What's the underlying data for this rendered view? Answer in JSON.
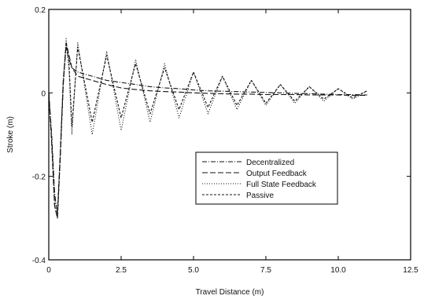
{
  "chart_data": {
    "type": "line",
    "title": "",
    "xlabel": "Travel Distance (m)",
    "ylabel": "Stroke (m)",
    "xlim": [
      0,
      12.5
    ],
    "ylim": [
      -0.4,
      0.2
    ],
    "xticks": [
      0,
      2.5,
      5.0,
      7.5,
      10.0,
      12.5
    ],
    "xtick_labels": [
      "0",
      "2.5",
      "5.0",
      "7.5",
      "10.0",
      "12.5"
    ],
    "yticks": [
      -0.4,
      -0.2,
      0,
      0.2
    ],
    "ytick_labels": [
      "-0.4",
      "-0.2",
      "0",
      "0.2"
    ],
    "grid": false,
    "legend_position": "lower-right",
    "series": [
      {
        "name": "Decentralized",
        "dash": "6,2,1,2",
        "x": [
          0,
          0.1,
          0.2,
          0.3,
          0.4,
          0.5,
          0.6,
          0.7,
          0.8,
          1.0,
          1.5,
          2.0,
          2.5,
          3.0,
          3.5,
          4.0,
          4.5,
          5.0,
          5.5,
          6.0,
          6.5,
          7.0,
          7.5,
          8.0,
          8.5,
          9.0,
          9.5,
          10.0,
          10.5,
          11.0
        ],
        "y": [
          0,
          -0.1,
          -0.24,
          -0.29,
          -0.14,
          0.03,
          0.11,
          0.08,
          0.06,
          0.05,
          0.04,
          0.03,
          0.025,
          0.02,
          0.015,
          0.012,
          0.01,
          0.007,
          0.005,
          0.004,
          0.003,
          0.002,
          0.001,
          0.0,
          -0.001,
          -0.002,
          -0.003,
          -0.004,
          -0.004,
          -0.005
        ]
      },
      {
        "name": "Output Feedback",
        "dash": "7,3",
        "x": [
          0,
          0.1,
          0.2,
          0.3,
          0.4,
          0.5,
          0.6,
          0.7,
          0.8,
          1.0,
          1.5,
          2.0,
          2.5,
          3.0,
          3.5,
          4.0,
          4.5,
          5.0,
          5.5,
          6.0,
          6.5,
          7.0,
          7.5,
          8.0,
          8.5,
          9.0,
          9.5,
          10.0,
          10.5,
          11.0
        ],
        "y": [
          0,
          -0.12,
          -0.27,
          -0.3,
          -0.15,
          0.02,
          0.12,
          0.09,
          0.06,
          0.04,
          0.03,
          0.02,
          0.012,
          0.008,
          0.005,
          0.003,
          0.002,
          0.0,
          -0.001,
          -0.002,
          -0.003,
          -0.003,
          -0.004,
          -0.004,
          -0.004,
          -0.005,
          -0.005,
          -0.005,
          -0.006,
          -0.006
        ]
      },
      {
        "name": "Full State Feedback",
        "dash": "1,2",
        "x": [
          0,
          0.1,
          0.2,
          0.3,
          0.4,
          0.5,
          0.6,
          0.7,
          0.8,
          1.0,
          1.5,
          2.0,
          2.5,
          3.0,
          3.5,
          4.0,
          4.5,
          5.0,
          5.5,
          6.0,
          6.5,
          7.0,
          7.5,
          8.0,
          8.5,
          9.0,
          9.5,
          10.0,
          10.5,
          11.0
        ],
        "y": [
          0,
          -0.11,
          -0.25,
          -0.29,
          -0.14,
          0.03,
          0.13,
          0.05,
          -0.1,
          0.12,
          -0.1,
          0.1,
          -0.09,
          0.08,
          -0.07,
          0.07,
          -0.06,
          0.05,
          -0.05,
          0.04,
          -0.04,
          0.03,
          -0.03,
          0.02,
          -0.025,
          0.015,
          -0.02,
          0.01,
          -0.015,
          0.005
        ]
      },
      {
        "name": "Passive",
        "dash": "3,2",
        "x": [
          0,
          0.1,
          0.2,
          0.3,
          0.4,
          0.5,
          0.6,
          0.7,
          0.8,
          1.0,
          1.5,
          2.0,
          2.5,
          3.0,
          3.5,
          4.0,
          4.5,
          5.0,
          5.5,
          6.0,
          6.5,
          7.0,
          7.5,
          8.0,
          8.5,
          9.0,
          9.5,
          10.0,
          10.5,
          11.0
        ],
        "y": [
          0,
          -0.12,
          -0.27,
          -0.3,
          -0.15,
          0.02,
          0.12,
          0.07,
          -0.08,
          0.11,
          -0.07,
          0.09,
          -0.06,
          0.07,
          -0.05,
          0.06,
          -0.04,
          0.05,
          -0.035,
          0.04,
          -0.03,
          0.03,
          -0.025,
          0.02,
          -0.02,
          0.015,
          -0.015,
          0.01,
          -0.012,
          0.005
        ]
      }
    ]
  }
}
